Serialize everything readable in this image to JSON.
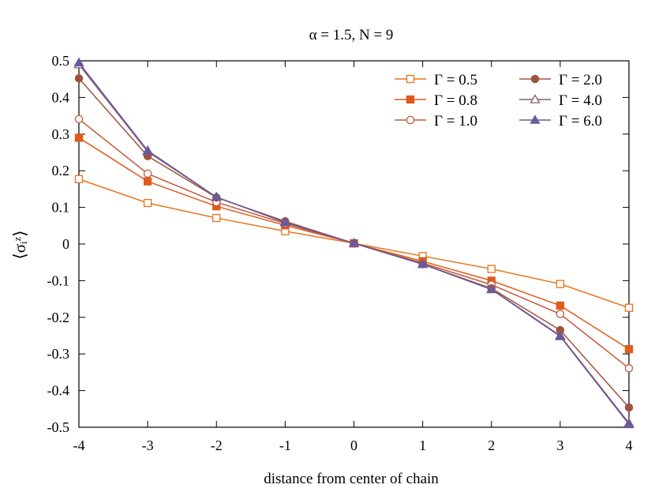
{
  "chart_data": {
    "type": "line",
    "title": "α = 1.5, N = 9",
    "xlabel": "distance from center of chain",
    "ylabel": "⟨σᵢᶻ⟩",
    "xlim": [
      -4,
      4
    ],
    "ylim": [
      -0.5,
      0.5
    ],
    "x_ticks": [
      "-4",
      "-3",
      "-2",
      "-1",
      "0",
      "1",
      "2",
      "3",
      "4"
    ],
    "y_ticks": [
      "0.5",
      "0.4",
      "0.3",
      "0.2",
      "0.1",
      "0",
      "-0.1",
      "-0.2",
      "-0.3",
      "-0.4",
      "-0.5"
    ],
    "grid": false,
    "legend_position": "top-right",
    "x": [
      -4,
      -3,
      -2,
      -1,
      0,
      1,
      2,
      3,
      4
    ],
    "series": [
      {
        "name": "Γ = 0.5",
        "color": "#e8721c",
        "marker": "square-open",
        "values": [
          0.177,
          0.112,
          0.071,
          0.035,
          0.002,
          -0.033,
          -0.068,
          -0.109,
          -0.174
        ]
      },
      {
        "name": "Γ = 0.8",
        "color": "#e05a1c",
        "marker": "square-filled",
        "values": [
          0.29,
          0.171,
          0.103,
          0.051,
          0.002,
          -0.047,
          -0.1,
          -0.168,
          -0.287
        ]
      },
      {
        "name": "Γ = 1.0",
        "color": "#c8583a",
        "marker": "circle-open",
        "values": [
          0.341,
          0.192,
          0.114,
          0.056,
          0.002,
          -0.052,
          -0.111,
          -0.191,
          -0.339
        ]
      },
      {
        "name": "Γ = 2.0",
        "color": "#a0523e",
        "marker": "circle-filled",
        "values": [
          0.452,
          0.24,
          0.127,
          0.062,
          0.002,
          -0.055,
          -0.121,
          -0.235,
          -0.446
        ]
      },
      {
        "name": "Γ = 4.0",
        "color": "#8a5a6e",
        "marker": "triangle-open",
        "values": [
          0.49,
          0.252,
          0.128,
          0.06,
          0.002,
          -0.055,
          -0.123,
          -0.25,
          -0.489
        ]
      },
      {
        "name": "Γ = 6.0",
        "color": "#6a5a9c",
        "marker": "triangle-filled",
        "values": [
          0.495,
          0.255,
          0.128,
          0.059,
          0.002,
          -0.055,
          -0.124,
          -0.252,
          -0.492
        ]
      }
    ]
  }
}
